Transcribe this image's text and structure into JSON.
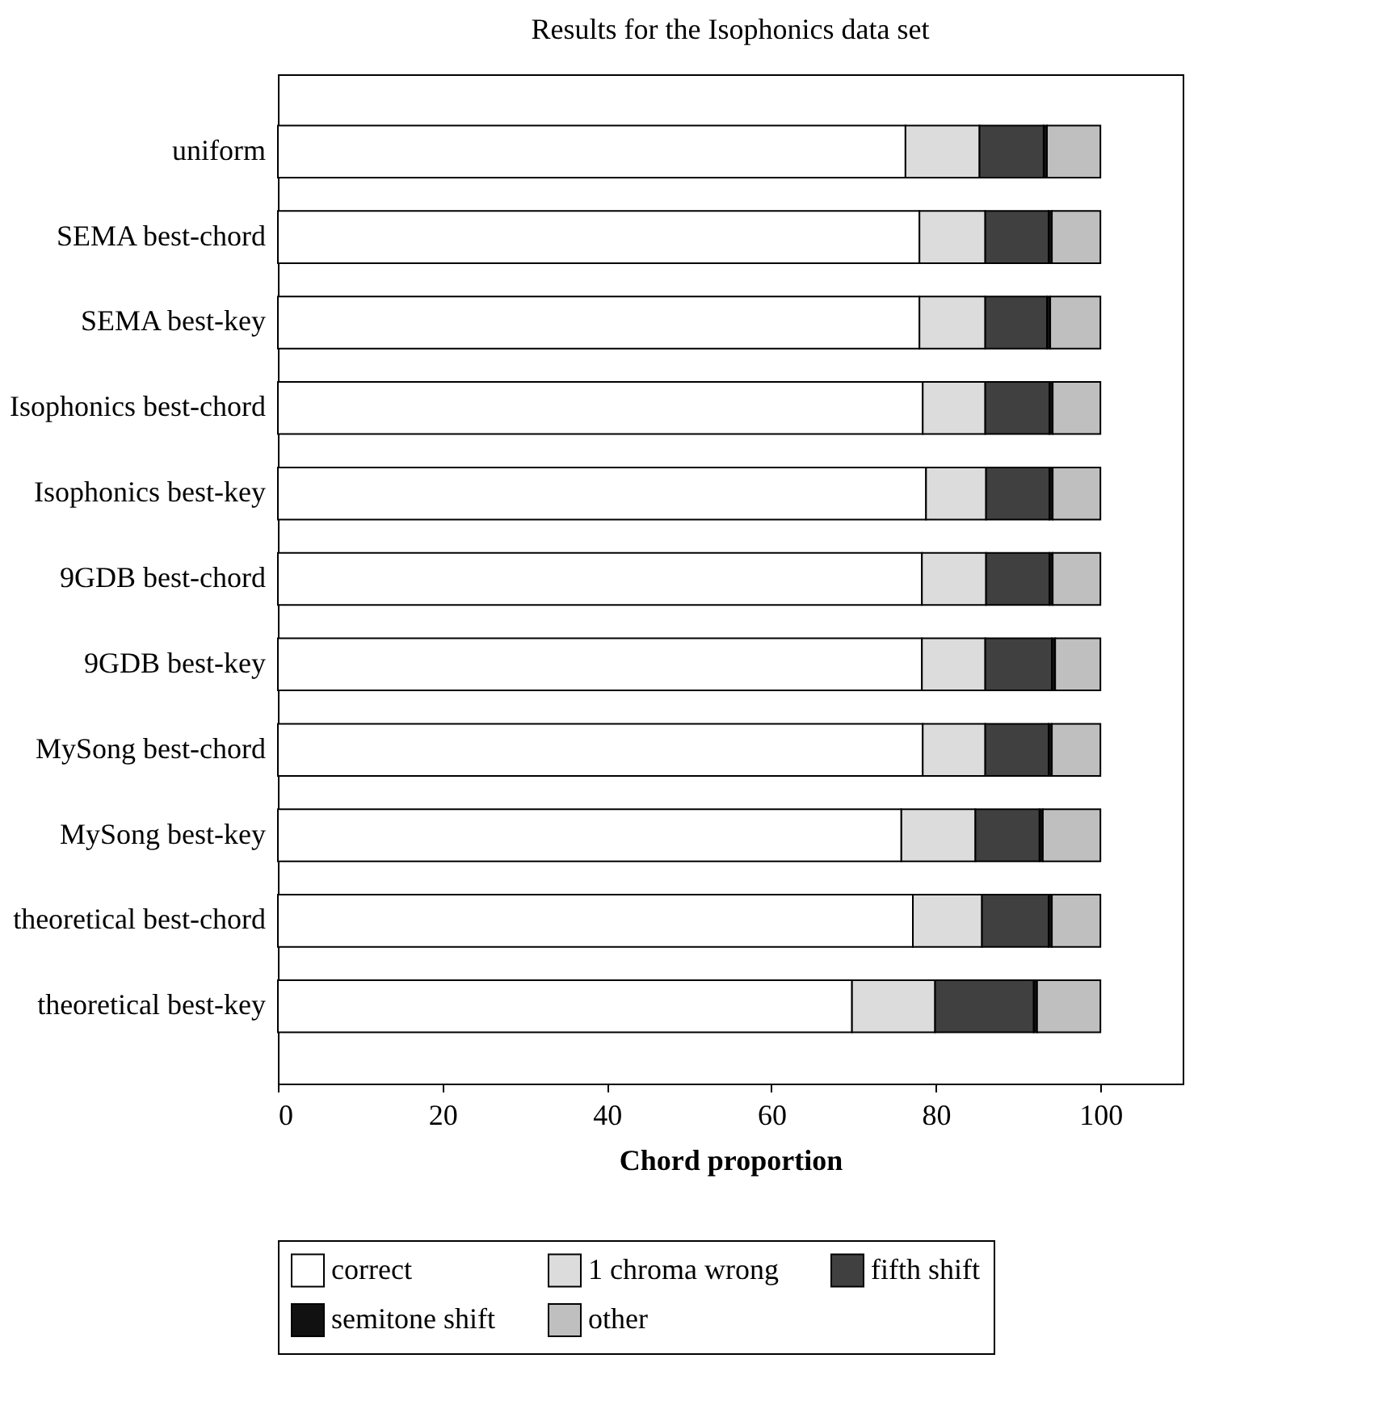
{
  "chart_data": {
    "type": "bar",
    "orientation": "horizontal",
    "stacked": true,
    "title": "Results for the Isophonics data set",
    "xlabel": "Chord proportion",
    "categories": [
      "uniform",
      "SEMA best-chord",
      "SEMA best-key",
      "Isophonics best-chord",
      "Isophonics best-key",
      "9GDB best-chord",
      "9GDB best-key",
      "MySong best-chord",
      "MySong best-key",
      "theoretical best-chord",
      "theoretical best-key"
    ],
    "series": [
      {
        "name": "correct",
        "color": "#ffffff",
        "values": [
          76.3,
          78.0,
          78.0,
          78.4,
          78.8,
          78.3,
          78.3,
          78.4,
          75.8,
          77.2,
          69.8
        ]
      },
      {
        "name": "1 chroma wrong",
        "color": "#dcdcdc",
        "values": [
          9.0,
          8.0,
          8.0,
          7.6,
          7.3,
          7.8,
          7.7,
          7.6,
          9.0,
          8.4,
          10.1
        ]
      },
      {
        "name": "fifth shift",
        "color": "#404040",
        "values": [
          7.8,
          7.7,
          7.5,
          7.8,
          7.7,
          7.7,
          8.1,
          7.7,
          7.8,
          8.1,
          12.0
        ]
      },
      {
        "name": "semitone shift",
        "color": "#111111",
        "values": [
          0.4,
          0.4,
          0.4,
          0.4,
          0.4,
          0.4,
          0.4,
          0.4,
          0.4,
          0.4,
          0.4
        ]
      },
      {
        "name": "other",
        "color": "#bfbfbf",
        "values": [
          6.5,
          5.9,
          6.1,
          5.8,
          5.8,
          5.8,
          5.5,
          5.9,
          7.0,
          5.9,
          7.7
        ]
      }
    ],
    "xlim": [
      0,
      110
    ],
    "xticks": [
      0,
      20,
      40,
      60,
      80,
      100
    ],
    "legend": "bottom",
    "grid": false
  }
}
